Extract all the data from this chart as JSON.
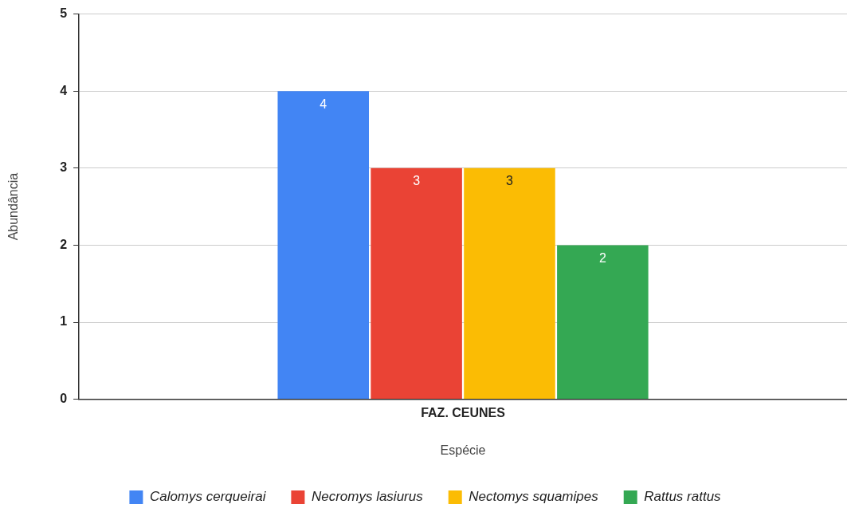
{
  "chart_data": {
    "type": "bar",
    "xlabel": "Espécie",
    "ylabel": "Abundância",
    "categories": [
      "FAZ. CEUNES"
    ],
    "series": [
      {
        "name": "Calomys cerqueirai",
        "color": "#4285f4",
        "values": [
          4
        ]
      },
      {
        "name": "Necromys lasiurus",
        "color": "#ea4335",
        "values": [
          3
        ]
      },
      {
        "name": "Nectomys squamipes",
        "color": "#fbbc04",
        "values": [
          3
        ]
      },
      {
        "name": "Rattus rattus",
        "color": "#34a853",
        "values": [
          2
        ]
      }
    ],
    "ylim": [
      0,
      5
    ],
    "yticks": [
      0,
      1,
      2,
      3,
      4,
      5
    ],
    "grid": "y",
    "legend": "bottom",
    "data_labels": true
  }
}
